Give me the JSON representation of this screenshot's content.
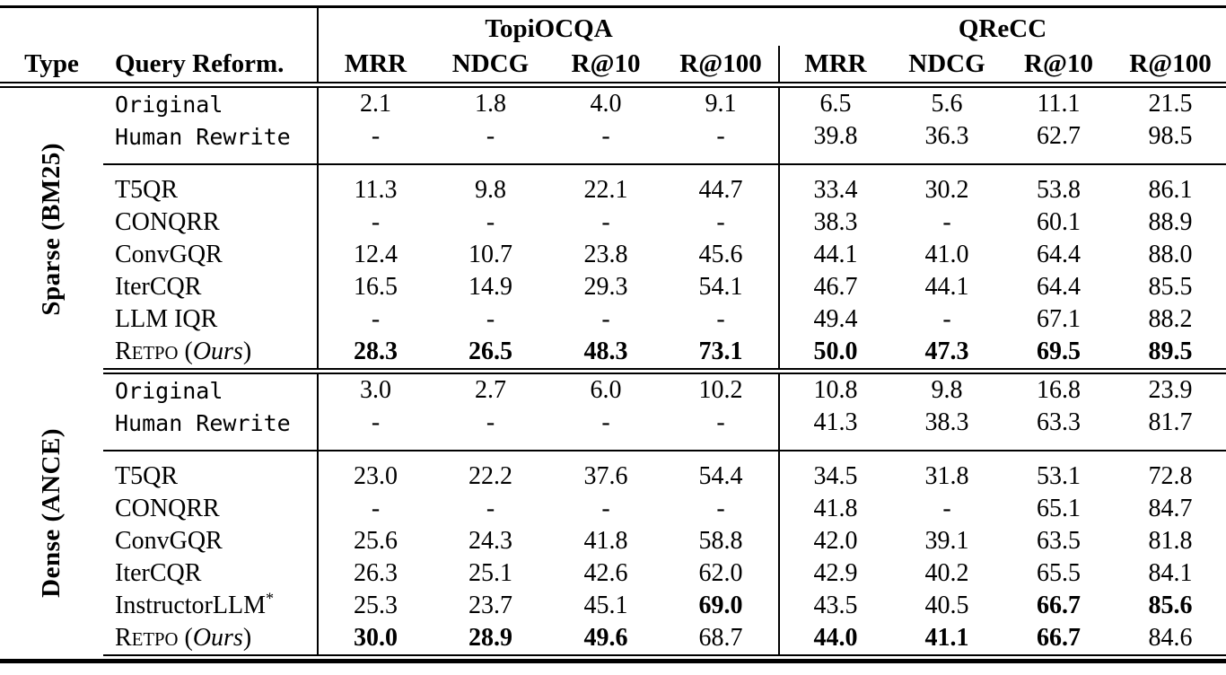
{
  "header": {
    "type_col": "Type",
    "method_col": "Query Reform.",
    "dataset_groups": [
      "TopiOCQA",
      "QReCC"
    ],
    "metrics_left": [
      "MRR",
      "NDCG",
      "R@10",
      "R@100"
    ],
    "metrics_right": [
      "MRR",
      "NDCG",
      "R@10",
      "R@100"
    ]
  },
  "sections": [
    {
      "type_label": "Sparse (BM25)",
      "rows": [
        {
          "method": {
            "text": "Original",
            "mono": true
          },
          "values": [
            "2.1",
            "1.8",
            "4.0",
            "9.1",
            "6.5",
            "5.6",
            "11.1",
            "21.5"
          ]
        },
        {
          "method": {
            "text": "Human Rewrite",
            "mono": true
          },
          "group_end": true,
          "values": [
            "-",
            "-",
            "-",
            "-",
            "39.8",
            "36.3",
            "62.7",
            "98.5"
          ]
        },
        {
          "method": {
            "text": "T5QR"
          },
          "group_start": true,
          "values": [
            "11.3",
            "9.8",
            "22.1",
            "44.7",
            "33.4",
            "30.2",
            "53.8",
            "86.1"
          ]
        },
        {
          "method": {
            "text": "CONQRR"
          },
          "values": [
            "-",
            "-",
            "-",
            "-",
            "38.3",
            "-",
            "60.1",
            "88.9"
          ]
        },
        {
          "method": {
            "text": "ConvGQR"
          },
          "values": [
            "12.4",
            "10.7",
            "23.8",
            "45.6",
            "44.1",
            "41.0",
            "64.4",
            "88.0"
          ]
        },
        {
          "method": {
            "text": "IterCQR"
          },
          "values": [
            "16.5",
            "14.9",
            "29.3",
            "54.1",
            "46.7",
            "44.1",
            "64.4",
            "85.5"
          ]
        },
        {
          "method": {
            "text": "LLM IQR"
          },
          "values": [
            "-",
            "-",
            "-",
            "-",
            "49.4",
            "-",
            "67.1",
            "88.2"
          ]
        },
        {
          "method": {
            "sc_lead": "R",
            "sc_rest": "ETPO",
            "paren_italic": "Ours"
          },
          "values": [
            "28.3",
            "26.5",
            "48.3",
            "73.1",
            "50.0",
            "47.3",
            "69.5",
            "89.5"
          ],
          "bold": [
            1,
            1,
            1,
            1,
            1,
            1,
            1,
            1
          ]
        }
      ]
    },
    {
      "type_label": "Dense (ANCE)",
      "rows": [
        {
          "method": {
            "text": "Original",
            "mono": true
          },
          "values": [
            "3.0",
            "2.7",
            "6.0",
            "10.2",
            "10.8",
            "9.8",
            "16.8",
            "23.9"
          ]
        },
        {
          "method": {
            "text": "Human Rewrite",
            "mono": true
          },
          "group_end": true,
          "values": [
            "-",
            "-",
            "-",
            "-",
            "41.3",
            "38.3",
            "63.3",
            "81.7"
          ]
        },
        {
          "method": {
            "text": "T5QR"
          },
          "group_start": true,
          "values": [
            "23.0",
            "22.2",
            "37.6",
            "54.4",
            "34.5",
            "31.8",
            "53.1",
            "72.8"
          ]
        },
        {
          "method": {
            "text": "CONQRR"
          },
          "values": [
            "-",
            "-",
            "-",
            "-",
            "41.8",
            "-",
            "65.1",
            "84.7"
          ]
        },
        {
          "method": {
            "text": "ConvGQR"
          },
          "values": [
            "25.6",
            "24.3",
            "41.8",
            "58.8",
            "42.0",
            "39.1",
            "63.5",
            "81.8"
          ]
        },
        {
          "method": {
            "text": "IterCQR"
          },
          "values": [
            "26.3",
            "25.1",
            "42.6",
            "62.0",
            "42.9",
            "40.2",
            "65.5",
            "84.1"
          ]
        },
        {
          "method": {
            "text": "InstructorLLM",
            "sup": "*"
          },
          "values": [
            "25.3",
            "23.7",
            "45.1",
            "69.0",
            "43.5",
            "40.5",
            "66.7",
            "85.6"
          ],
          "bold": [
            0,
            0,
            0,
            1,
            0,
            0,
            1,
            1
          ]
        },
        {
          "method": {
            "sc_lead": "R",
            "sc_rest": "ETPO",
            "paren_italic": "Ours"
          },
          "values": [
            "30.0",
            "28.9",
            "49.6",
            "68.7",
            "44.0",
            "41.1",
            "66.7",
            "84.6"
          ],
          "bold": [
            1,
            1,
            1,
            0,
            1,
            1,
            1,
            0
          ]
        }
      ]
    }
  ]
}
